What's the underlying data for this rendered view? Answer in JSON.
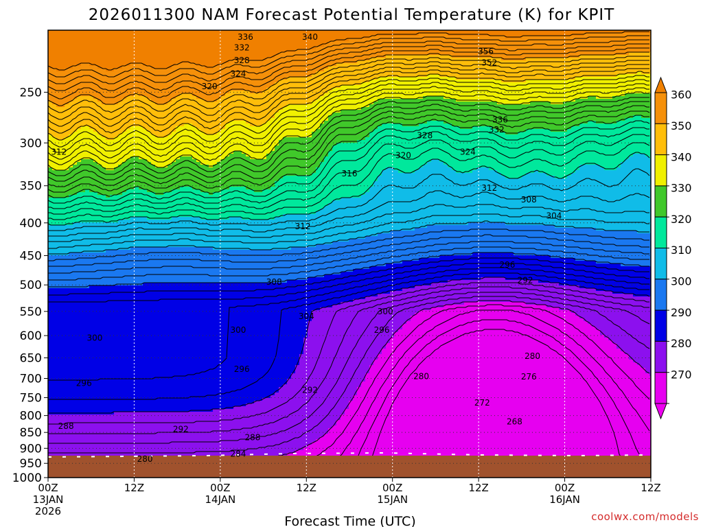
{
  "chart_data": {
    "type": "heatmap",
    "title": "2026011300 NAM Forecast Potential Temperature (K) for KPIT",
    "xlabel": "Forecast Time (UTC)",
    "ylabel": "",
    "y_axis": {
      "scale": "log-pressure",
      "range": [
        200,
        1000
      ],
      "ticks": [
        "250",
        "300",
        "350",
        "400",
        "450",
        "500",
        "550",
        "600",
        "650",
        "700",
        "750",
        "800",
        "850",
        "900",
        "950",
        "1000"
      ],
      "reversed": true
    },
    "x_axis": {
      "range_hours": [
        0,
        84
      ],
      "ticks": [
        {
          "label": "00Z",
          "sub1": "13JAN",
          "sub2": "2026"
        },
        {
          "label": "12Z",
          "sub1": "",
          "sub2": ""
        },
        {
          "label": "00Z",
          "sub1": "14JAN",
          "sub2": ""
        },
        {
          "label": "12Z",
          "sub1": "",
          "sub2": ""
        },
        {
          "label": "00Z",
          "sub1": "15JAN",
          "sub2": ""
        },
        {
          "label": "12Z",
          "sub1": "",
          "sub2": ""
        },
        {
          "label": "00Z",
          "sub1": "16JAN",
          "sub2": ""
        },
        {
          "label": "12Z",
          "sub1": "",
          "sub2": ""
        }
      ]
    },
    "grid": true,
    "colorbar": {
      "labels": [
        "360",
        "350",
        "340",
        "330",
        "320",
        "310",
        "300",
        "290",
        "280",
        "270"
      ],
      "bands": [
        {
          "min": 350,
          "max": 360,
          "color": "#f5900a"
        },
        {
          "min": 340,
          "max": 350,
          "color": "#ffbe0a"
        },
        {
          "min": 330,
          "max": 340,
          "color": "#f0f000"
        },
        {
          "min": 320,
          "max": 330,
          "color": "#40c82a"
        },
        {
          "min": 310,
          "max": 320,
          "color": "#00e89c"
        },
        {
          "min": 300,
          "max": 310,
          "color": "#10bce8"
        },
        {
          "min": 290,
          "max": 300,
          "color": "#1a78f0"
        },
        {
          "min": 280,
          "max": 290,
          "color": "#0000e6"
        },
        {
          "min": 270,
          "max": 280,
          "color": "#8c10ee"
        },
        {
          "min": 0,
          "max": 270,
          "color": "#e600f0"
        }
      ],
      "over_color": "#f08000",
      "under_color": "#ee00f0"
    },
    "contour_interval_K": 2,
    "contour_labels": [
      {
        "v": "336",
        "h": 27.5,
        "p": 205
      },
      {
        "v": "340",
        "h": 36.5,
        "p": 205
      },
      {
        "v": "332",
        "h": 27,
        "p": 213
      },
      {
        "v": "328",
        "h": 27,
        "p": 223
      },
      {
        "v": "324",
        "h": 26.5,
        "p": 234
      },
      {
        "v": "320",
        "h": 22.5,
        "p": 245
      },
      {
        "v": "356",
        "h": 61,
        "p": 216
      },
      {
        "v": "352",
        "h": 61.5,
        "p": 225
      },
      {
        "v": "336",
        "h": 63,
        "p": 276
      },
      {
        "v": "332",
        "h": 62.5,
        "p": 286
      },
      {
        "v": "328",
        "h": 52.5,
        "p": 292
      },
      {
        "v": "324",
        "h": 58.5,
        "p": 310
      },
      {
        "v": "320",
        "h": 49.5,
        "p": 314
      },
      {
        "v": "316",
        "h": 42,
        "p": 335
      },
      {
        "v": "312",
        "h": 61.5,
        "p": 353
      },
      {
        "v": "308",
        "h": 67,
        "p": 368
      },
      {
        "v": "304",
        "h": 70.5,
        "p": 390
      },
      {
        "v": "312",
        "h": 1.5,
        "p": 310
      },
      {
        "v": "312",
        "h": 35.5,
        "p": 405
      },
      {
        "v": "296",
        "h": 64,
        "p": 465
      },
      {
        "v": "292",
        "h": 66.5,
        "p": 492
      },
      {
        "v": "308",
        "h": 31.5,
        "p": 495
      },
      {
        "v": "304",
        "h": 36,
        "p": 560
      },
      {
        "v": "300",
        "h": 47,
        "p": 550
      },
      {
        "v": "300",
        "h": 6.5,
        "p": 605
      },
      {
        "v": "300",
        "h": 26.5,
        "p": 588
      },
      {
        "v": "296",
        "h": 46.5,
        "p": 588
      },
      {
        "v": "280",
        "h": 67.5,
        "p": 646
      },
      {
        "v": "296",
        "h": 27,
        "p": 677
      },
      {
        "v": "280",
        "h": 52,
        "p": 695
      },
      {
        "v": "276",
        "h": 67,
        "p": 696
      },
      {
        "v": "296",
        "h": 5,
        "p": 712
      },
      {
        "v": "292",
        "h": 36.5,
        "p": 730
      },
      {
        "v": "272",
        "h": 60.5,
        "p": 764
      },
      {
        "v": "268",
        "h": 65,
        "p": 818
      },
      {
        "v": "288",
        "h": 2.5,
        "p": 831
      },
      {
        "v": "292",
        "h": 18.5,
        "p": 840
      },
      {
        "v": "288",
        "h": 28.5,
        "p": 866
      },
      {
        "v": "284",
        "h": 26.5,
        "p": 918
      },
      {
        "v": "280",
        "h": 13.5,
        "p": 936
      }
    ],
    "credit": "coolwx.com/models"
  }
}
